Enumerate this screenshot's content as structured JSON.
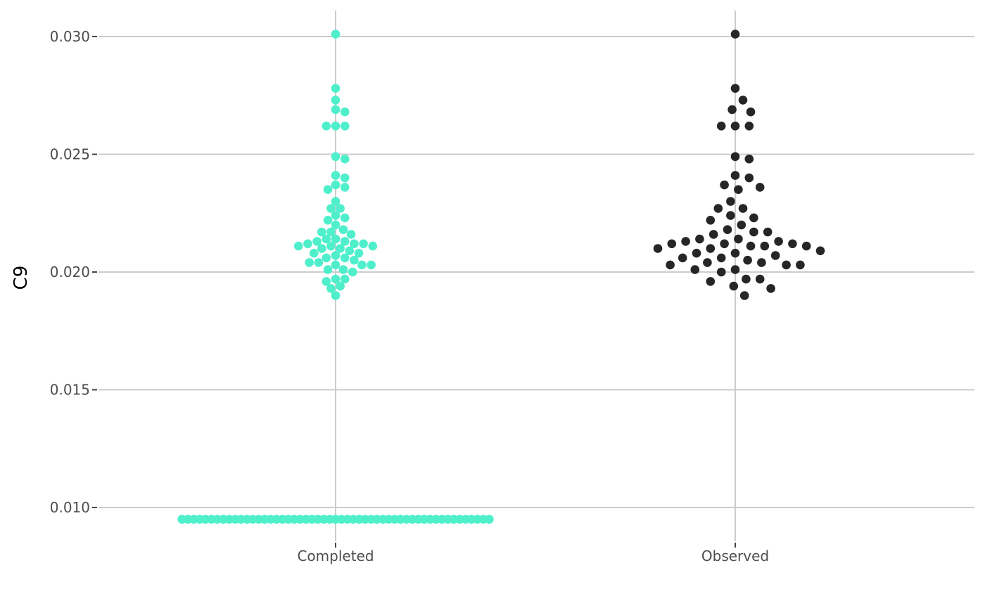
{
  "chart_data": {
    "type": "scatter",
    "ylabel": "C9",
    "xlabel": "",
    "categories": [
      "Completed",
      "Observed"
    ],
    "y_ticks": [
      "0.010",
      "0.015",
      "0.020",
      "0.025",
      "0.030"
    ],
    "ylim": [
      0.0088,
      0.0311
    ],
    "grid": true,
    "legend": "none",
    "colors": {
      "Completed": "#4FEFCC",
      "Observed": "#262626"
    },
    "series": [
      {
        "category": "Completed",
        "values": [
          0.0301,
          0.0278,
          0.0273,
          0.0269,
          0.0268,
          0.0262,
          0.0262,
          0.0262,
          0.0249,
          0.0248,
          0.0241,
          0.024,
          0.0237,
          0.0236,
          0.0235,
          0.023,
          0.0227,
          0.0227,
          0.0224,
          0.0223,
          0.0222,
          0.022,
          0.0218,
          0.0217,
          0.0217,
          0.0216,
          0.0214,
          0.0214,
          0.0213,
          0.0213,
          0.0212,
          0.0212,
          0.0212,
          0.0211,
          0.0211,
          0.0211,
          0.021,
          0.021,
          0.0209,
          0.0208,
          0.0208,
          0.0207,
          0.0206,
          0.0206,
          0.0205,
          0.0204,
          0.0204,
          0.0203,
          0.0203,
          0.0203,
          0.0201,
          0.0201,
          0.02,
          0.0197,
          0.0197,
          0.0196,
          0.0194,
          0.0193,
          0.019
        ],
        "floor_value": 0.0095,
        "floor_count": 53
      },
      {
        "category": "Observed",
        "values": [
          0.0301,
          0.0278,
          0.0273,
          0.0269,
          0.0268,
          0.0262,
          0.0262,
          0.0262,
          0.0249,
          0.0248,
          0.0241,
          0.024,
          0.0237,
          0.0236,
          0.0235,
          0.023,
          0.0227,
          0.0227,
          0.0224,
          0.0223,
          0.0222,
          0.022,
          0.0218,
          0.0217,
          0.0217,
          0.0216,
          0.0214,
          0.0214,
          0.0213,
          0.0213,
          0.0212,
          0.0212,
          0.0212,
          0.0211,
          0.0211,
          0.0211,
          0.021,
          0.021,
          0.0209,
          0.0208,
          0.0208,
          0.0207,
          0.0206,
          0.0206,
          0.0205,
          0.0204,
          0.0204,
          0.0203,
          0.0203,
          0.0203,
          0.0201,
          0.0201,
          0.02,
          0.0197,
          0.0197,
          0.0196,
          0.0194,
          0.0193,
          0.019
        ]
      }
    ]
  }
}
